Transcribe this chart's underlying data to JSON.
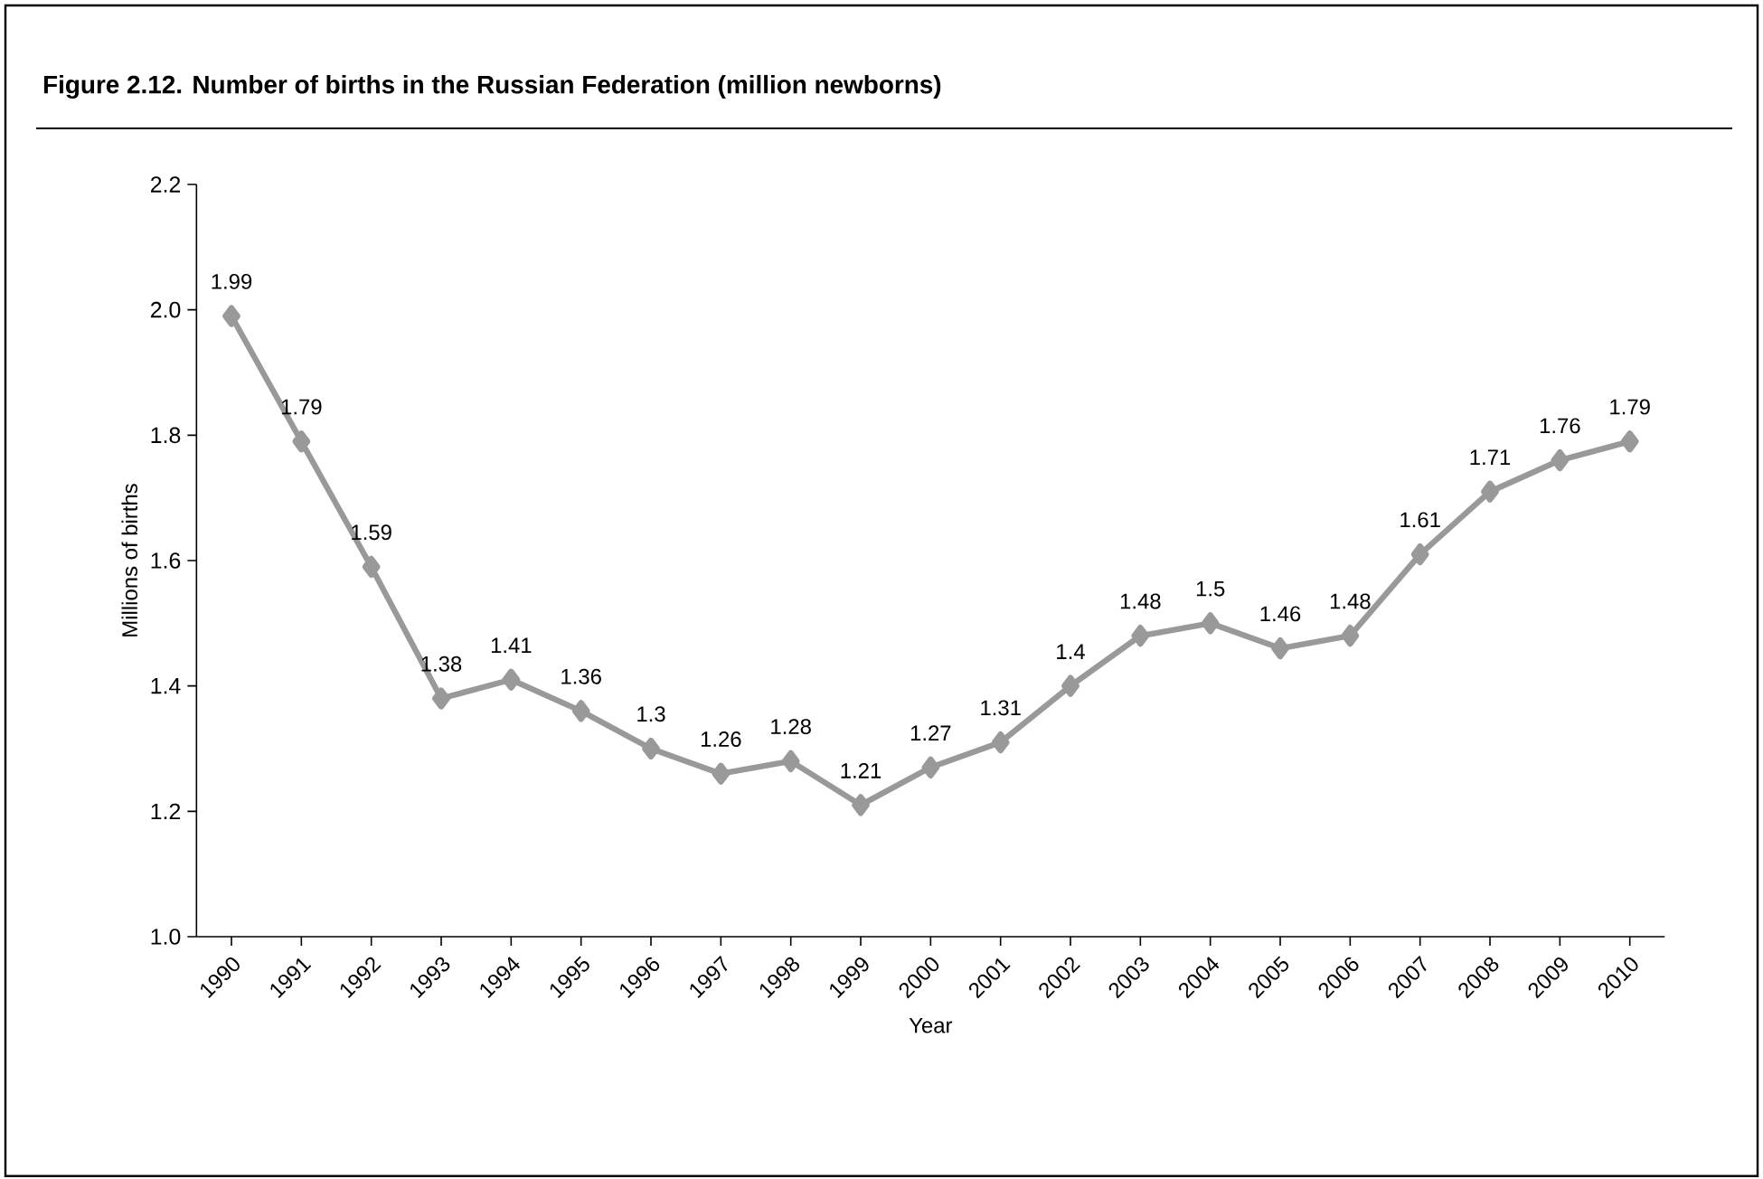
{
  "chart_data": {
    "type": "line",
    "title": "Figure 2.12. Number of births in the Russian Federation (million newborns)",
    "xlabel": "Year",
    "ylabel": "Millions of births",
    "categories": [
      "1990",
      "1991",
      "1992",
      "1993",
      "1994",
      "1995",
      "1996",
      "1997",
      "1998",
      "1999",
      "2000",
      "2001",
      "2002",
      "2003",
      "2004",
      "2005",
      "2006",
      "2007",
      "2008",
      "2009",
      "2010"
    ],
    "series": [
      {
        "color": "#999999",
        "values": [
          1.99,
          1.79,
          1.59,
          1.38,
          1.41,
          1.36,
          1.3,
          1.26,
          1.28,
          1.21,
          1.27,
          1.31,
          1.4,
          1.48,
          1.5,
          1.46,
          1.48,
          1.61,
          1.71,
          1.76,
          1.79
        ]
      }
    ],
    "ylim": [
      1.0,
      2.2
    ],
    "yticks": [
      {
        "value": 1.0,
        "label": "1.0"
      },
      {
        "value": 1.2,
        "label": "1.2"
      },
      {
        "value": 1.4,
        "label": "1.4"
      },
      {
        "value": 1.6,
        "label": "1.6"
      },
      {
        "value": 1.8,
        "label": "1.8"
      },
      {
        "value": 2.0,
        "label": "2.0"
      },
      {
        "value": 2.2,
        "label": "2.2"
      }
    ],
    "data_labels": true,
    "grid": false,
    "marker": "diamond",
    "line_style": "solid"
  }
}
